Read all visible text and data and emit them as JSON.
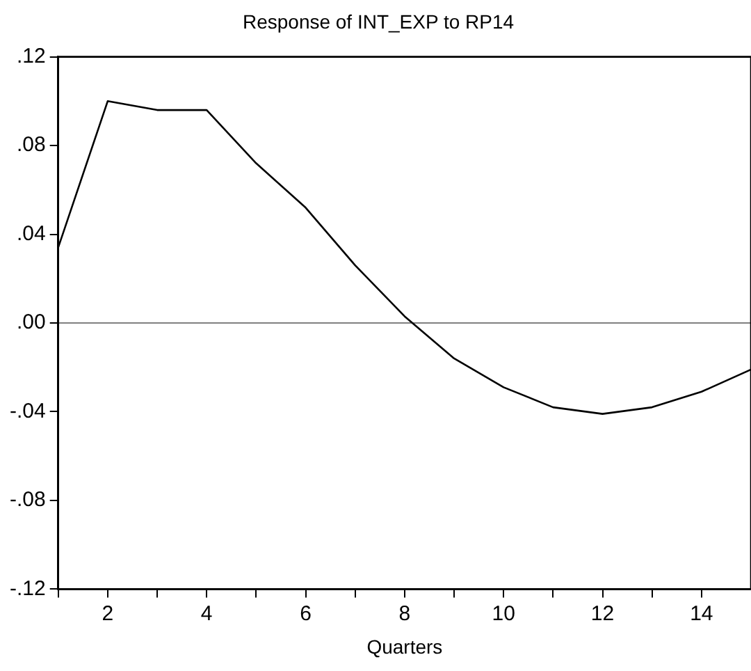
{
  "chart_data": {
    "type": "line",
    "title": "Response of INT_EXP to RP14",
    "xlabel": "Quarters",
    "x": [
      1,
      2,
      3,
      4,
      5,
      6,
      7,
      8,
      9,
      10,
      11,
      12,
      13,
      14,
      15
    ],
    "series": [
      {
        "color": "#000000",
        "values": [
          0.034,
          0.1,
          0.096,
          0.096,
          0.072,
          0.052,
          0.026,
          0.003,
          -0.016,
          -0.029,
          -0.038,
          -0.041,
          -0.038,
          -0.031,
          -0.021
        ]
      }
    ],
    "xlim": [
      1,
      15
    ],
    "xticks": [
      {
        "value": 1,
        "label": null
      },
      2,
      {
        "value": 3,
        "label": null
      },
      4,
      {
        "value": 5,
        "label": null
      },
      6,
      {
        "value": 7,
        "label": null
      },
      8,
      {
        "value": 9,
        "label": null
      },
      10,
      {
        "value": 11,
        "label": null
      },
      12,
      {
        "value": 13,
        "label": null
      },
      14
    ],
    "ylim": [
      -0.12,
      0.12
    ],
    "yticks": [
      {
        "value": -0.12,
        "label": "-.12"
      },
      {
        "value": -0.08,
        "label": "-.08"
      },
      {
        "value": -0.04,
        "label": "-.04"
      },
      {
        "value": 0,
        "label": ".00"
      },
      {
        "value": 0.04,
        "label": ".04"
      },
      {
        "value": 0.08,
        "label": ".08"
      },
      {
        "value": 0.12,
        "label": ".12"
      }
    ],
    "ref_lines": [
      {
        "axis": "y",
        "value": 0,
        "color": "#808080"
      }
    ],
    "grid": false,
    "legend": false,
    "marker": "none",
    "line_style": "solid"
  }
}
